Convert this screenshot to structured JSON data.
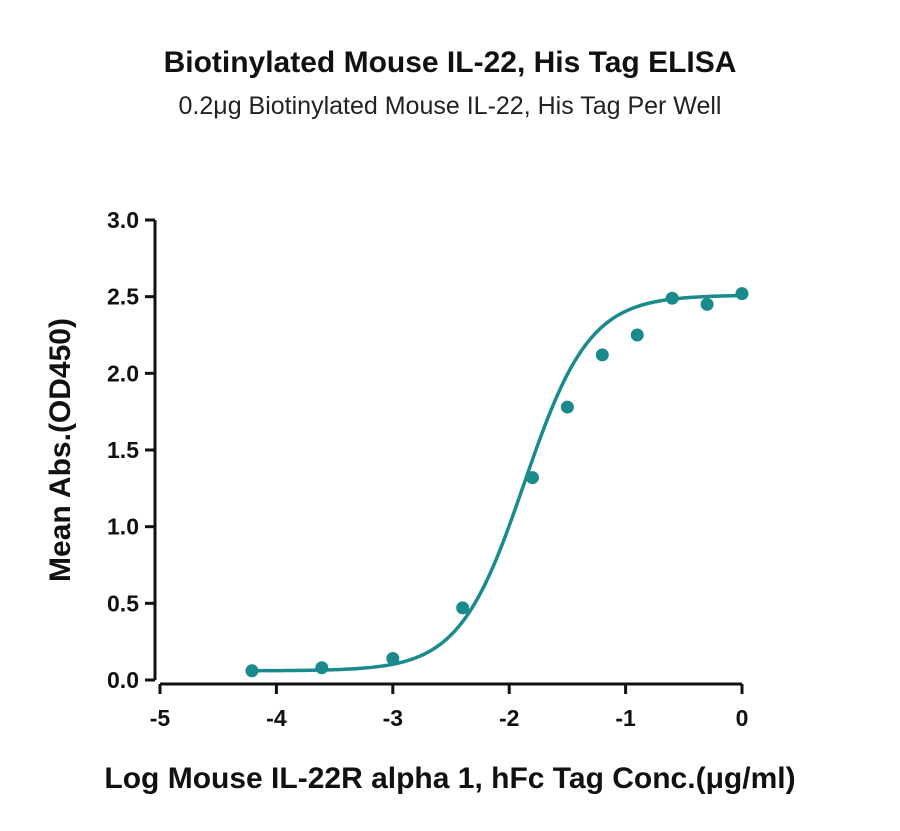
{
  "colors": {
    "series": "#1a8a8c",
    "axis": "#111111"
  },
  "chart_data": {
    "type": "scatter",
    "title": "Biotinylated Mouse IL-22, His Tag ELISA",
    "subtitle": "0.2μg Biotinylated Mouse IL-22, His Tag Per Well",
    "xlabel": "Log Mouse IL-22R alpha 1, hFc  Tag Conc.(μg/ml)",
    "ylabel": "Mean Abs.(OD450)",
    "xlim": [
      -5,
      0
    ],
    "ylim": [
      0,
      3.0
    ],
    "x_ticks": [
      -5,
      -4,
      -3,
      -2,
      -1,
      0
    ],
    "x_tick_labels": [
      "-5",
      "-4",
      "-3",
      "-2",
      "-1",
      "0"
    ],
    "y_ticks": [
      0,
      0.5,
      1.0,
      1.5,
      2.0,
      2.5,
      3.0
    ],
    "y_tick_labels": [
      "0.0",
      "0.5",
      "1.0",
      "1.5",
      "2.0",
      "2.5",
      "3.0"
    ],
    "grid": false,
    "series": [
      {
        "points": [
          {
            "x": -4.21,
            "y": 0.06
          },
          {
            "x": -3.61,
            "y": 0.08
          },
          {
            "x": -3.0,
            "y": 0.14
          },
          {
            "x": -2.4,
            "y": 0.47
          },
          {
            "x": -1.8,
            "y": 1.32
          },
          {
            "x": -1.5,
            "y": 1.78
          },
          {
            "x": -1.2,
            "y": 2.12
          },
          {
            "x": -0.9,
            "y": 2.25
          },
          {
            "x": -0.6,
            "y": 2.49
          },
          {
            "x": -0.3,
            "y": 2.45
          },
          {
            "x": 0.0,
            "y": 2.52
          }
        ],
        "fit": {
          "model": "4PL",
          "bottom": 0.06,
          "top": 2.51,
          "log_ec50": -1.87,
          "hill_slope": 1.55,
          "x_range": [
            -4.21,
            0
          ]
        }
      }
    ]
  }
}
